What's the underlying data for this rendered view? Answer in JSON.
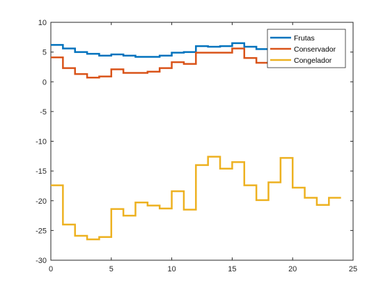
{
  "chart_data": {
    "type": "line",
    "step": true,
    "title": "",
    "xlabel": "",
    "ylabel": "",
    "xlim": [
      0,
      25
    ],
    "ylim": [
      -30,
      10
    ],
    "xticks": [
      0,
      5,
      10,
      15,
      20,
      25
    ],
    "yticks": [
      -30,
      -25,
      -20,
      -15,
      -10,
      -5,
      0,
      5,
      10
    ],
    "xtick_labels": [
      "0",
      "5",
      "10",
      "15",
      "20",
      "25"
    ],
    "ytick_labels": [
      "-30",
      "-25",
      "-20",
      "-15",
      "-10",
      "-5",
      "0",
      "5",
      "10"
    ],
    "grid": false,
    "legend_position": "top-right",
    "x": [
      0,
      1,
      2,
      3,
      4,
      5,
      6,
      7,
      8,
      9,
      10,
      11,
      12,
      13,
      14,
      15,
      16,
      17,
      18,
      19,
      20,
      21,
      22,
      23,
      24
    ],
    "series": [
      {
        "name": "Frutas",
        "color": "#0072BD",
        "values": [
          6.2,
          5.6,
          5.0,
          4.7,
          4.4,
          4.6,
          4.4,
          4.2,
          4.2,
          4.4,
          4.9,
          5.0,
          6.0,
          5.9,
          6.0,
          6.5,
          5.9,
          5.5,
          5.3,
          5.1,
          5.0,
          5.0,
          5.0,
          5.0,
          5.0
        ]
      },
      {
        "name": "Conservador",
        "color": "#D95319",
        "values": [
          4.1,
          2.3,
          1.3,
          0.7,
          0.9,
          2.1,
          1.5,
          1.5,
          1.7,
          2.3,
          3.3,
          3.0,
          4.9,
          4.9,
          4.9,
          5.6,
          4.0,
          3.2,
          3.3,
          3.3,
          3.3,
          3.3,
          3.3,
          3.3,
          3.3
        ]
      },
      {
        "name": "Congelador",
        "color": "#EDB120",
        "values": [
          -17.4,
          -24.0,
          -25.9,
          -26.5,
          -26.1,
          -21.4,
          -22.5,
          -20.3,
          -20.8,
          -21.3,
          -18.4,
          -21.5,
          -14.0,
          -12.6,
          -14.6,
          -13.5,
          -17.4,
          -19.9,
          -16.9,
          -12.8,
          -17.8,
          -19.5,
          -20.7,
          -19.5,
          -19.5
        ]
      }
    ]
  }
}
